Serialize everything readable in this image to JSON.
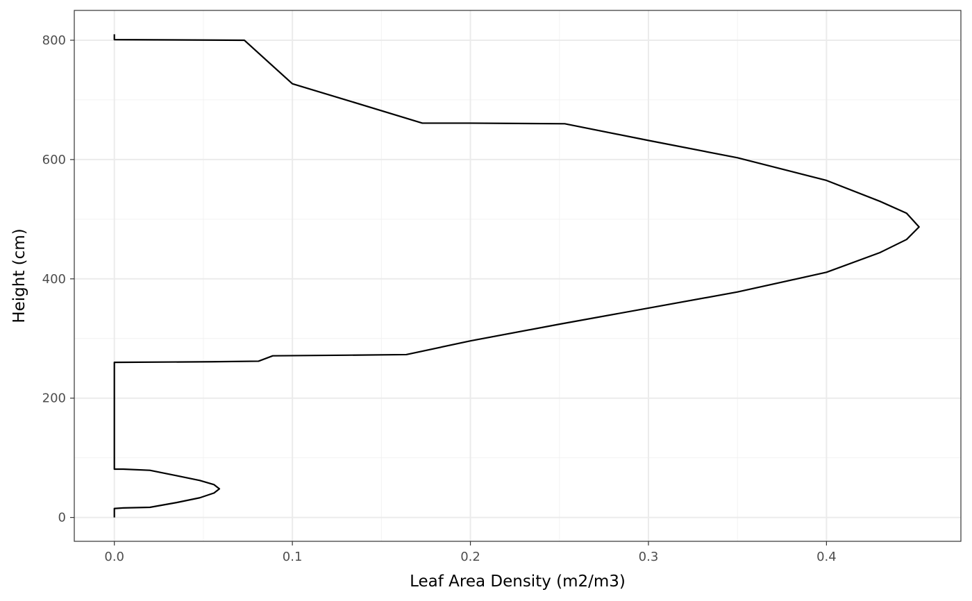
{
  "chart_data": {
    "type": "line",
    "title": "",
    "xlabel": "Leaf Area Density (m2/m3)",
    "ylabel": "Height (cm)",
    "xlim": [
      -0.0225,
      0.4755
    ],
    "ylim": [
      -40,
      850
    ],
    "x_ticks": [
      0.0,
      0.1,
      0.2,
      0.3,
      0.4
    ],
    "x_tick_labels": [
      "0.0",
      "0.1",
      "0.2",
      "0.3",
      "0.4"
    ],
    "y_ticks": [
      0,
      200,
      400,
      600,
      800
    ],
    "y_tick_labels": [
      "0",
      "200",
      "400",
      "600",
      "800"
    ],
    "grid": true,
    "line_color": "#000000",
    "series": [
      {
        "points": [
          [
            0.0,
            0
          ],
          [
            0.0,
            15
          ],
          [
            0.005,
            16
          ],
          [
            0.02,
            17
          ],
          [
            0.035,
            25
          ],
          [
            0.048,
            33
          ],
          [
            0.056,
            41
          ],
          [
            0.059,
            48
          ],
          [
            0.056,
            55
          ],
          [
            0.048,
            62
          ],
          [
            0.035,
            70
          ],
          [
            0.02,
            79
          ],
          [
            0.005,
            81
          ],
          [
            0.0,
            81
          ],
          [
            0.0,
            260
          ],
          [
            0.055,
            261
          ],
          [
            0.081,
            262
          ],
          [
            0.089,
            271
          ],
          [
            0.13,
            272
          ],
          [
            0.164,
            273
          ],
          [
            0.2,
            296
          ],
          [
            0.25,
            324
          ],
          [
            0.3,
            351
          ],
          [
            0.35,
            378
          ],
          [
            0.4,
            411
          ],
          [
            0.43,
            444
          ],
          [
            0.445,
            466
          ],
          [
            0.452,
            487
          ],
          [
            0.445,
            510
          ],
          [
            0.43,
            530
          ],
          [
            0.4,
            565
          ],
          [
            0.35,
            603
          ],
          [
            0.3,
            632
          ],
          [
            0.253,
            660
          ],
          [
            0.2,
            661
          ],
          [
            0.173,
            661
          ],
          [
            0.13,
            700
          ],
          [
            0.1,
            727
          ],
          [
            0.073,
            800
          ],
          [
            0.0,
            801
          ],
          [
            0.0,
            810
          ]
        ]
      }
    ]
  }
}
